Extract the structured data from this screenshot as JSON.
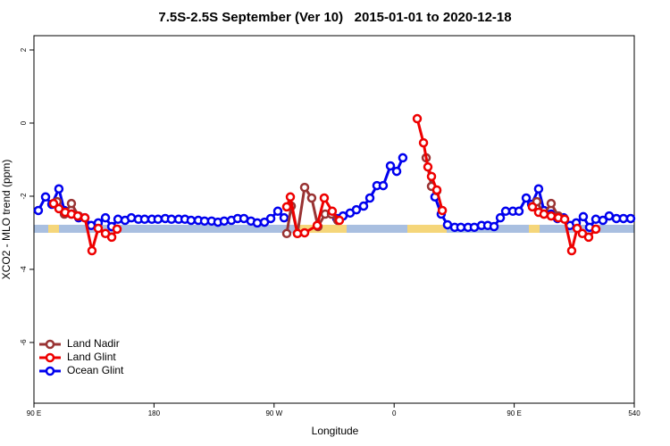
{
  "chart_data": {
    "type": "line",
    "title": "7.5S-2.5S September (Ver 10)   2015-01-01 to 2020-12-18",
    "xlabel": "Longitude",
    "ylabel": "XCO2 - MLO trend (ppm)",
    "xlim": [
      90,
      540
    ],
    "ylim": [
      -7.66,
      2.39
    ],
    "xticks": [
      {
        "value": 90,
        "label": "90 E"
      },
      180,
      {
        "value": 270,
        "label": "90 W"
      },
      {
        "value": 360,
        "label": "0"
      },
      {
        "value": 450,
        "label": "90 E"
      },
      540
    ],
    "yticks": [
      2,
      0,
      -2,
      -4,
      -6
    ],
    "legend": "bottom-left",
    "series": [
      {
        "name": "Land Nadir",
        "color": "#993333",
        "x": [
          107.4,
          112.8,
          118.1,
          123.5,
          null,
          279.5,
          282.9,
          287.5,
          292.9,
          298.2,
          302.9,
          308.3,
          313.0,
          317.7,
          null,
          384.0,
          388.0,
          392.0,
          null,
          467.0,
          472.3,
          477.7,
          483.1
        ],
        "values": [
          -2.15,
          -2.49,
          -2.2,
          -2.54,
          null,
          -3.02,
          -2.27,
          -3.02,
          -1.76,
          -2.05,
          -2.83,
          -2.49,
          -2.49,
          -2.66,
          null,
          -0.95,
          -1.73,
          -1.85,
          null,
          -2.15,
          -2.49,
          -2.2,
          -2.54
        ]
      },
      {
        "name": "Land Glint",
        "color": "#ee0000",
        "x": [
          104.7,
          108.7,
          113.4,
          118.1,
          122.8,
          128.2,
          133.5,
          138.2,
          143.6,
          148.3,
          152.3,
          null,
          279.5,
          282.2,
          287.5,
          292.9,
          302.3,
          307.6,
          313.6,
          319.0,
          null,
          377.3,
          382.0,
          385.3,
          388.0,
          392.0,
          396.1,
          null,
          463.6,
          468.3,
          472.3,
          477.7,
          483.1,
          487.8,
          493.1,
          497.2,
          501.1,
          505.8,
          511.2
        ],
        "values": [
          -2.2,
          -2.34,
          -2.44,
          -2.49,
          -2.54,
          -2.59,
          -3.49,
          -2.88,
          -3.02,
          -3.12,
          -2.9,
          null,
          -2.29,
          -2.02,
          -3.02,
          -3.0,
          -2.8,
          -2.05,
          -2.41,
          -2.66,
          null,
          0.12,
          -0.54,
          -1.2,
          -1.46,
          -1.83,
          -2.39,
          null,
          -2.29,
          -2.44,
          -2.49,
          -2.54,
          -2.59,
          -2.63,
          -3.49,
          -2.88,
          -3.02,
          -3.12,
          -2.9
        ]
      },
      {
        "name": "Ocean Glint",
        "color": "#0000ee",
        "x": [
          93.3,
          98.7,
          103.4,
          108.7,
          112.8,
          118.1,
          123.5,
          128.2,
          132.9,
          138.2,
          143.6,
          148.3,
          153.0,
          158.3,
          163.0,
          168.3,
          173.0,
          178.4,
          183.0,
          188.4,
          193.1,
          198.5,
          203.2,
          207.8,
          213.2,
          217.9,
          223.2,
          227.9,
          232.6,
          238.0,
          242.7,
          247.4,
          252.7,
          257.4,
          262.8,
          267.5,
          272.8,
          277.5,
          null,
          317.0,
          321.7,
          327.0,
          331.7,
          337.1,
          341.8,
          347.1,
          351.8,
          357.2,
          361.9,
          366.5,
          null,
          390.6,
          395.3,
          400.0,
          405.4,
          410.0,
          415.4,
          420.1,
          425.5,
          430.2,
          434.9,
          439.6,
          443.6,
          449.0,
          453.6,
          459.0,
          463.0,
          468.3,
          472.3,
          477.7,
          482.4,
          487.1,
          491.8,
          496.5,
          501.8,
          506.5,
          511.2,
          516.5,
          521.2,
          526.6,
          531.9,
          537.3
        ],
        "values": [
          -2.39,
          -2.02,
          -2.22,
          -1.8,
          -2.39,
          -2.49,
          -2.59,
          -2.59,
          -2.8,
          -2.73,
          -2.59,
          -2.83,
          -2.63,
          -2.66,
          -2.59,
          -2.63,
          -2.63,
          -2.63,
          -2.63,
          -2.61,
          -2.63,
          -2.63,
          -2.63,
          -2.66,
          -2.66,
          -2.68,
          -2.68,
          -2.71,
          -2.68,
          -2.66,
          -2.61,
          -2.61,
          -2.68,
          -2.73,
          -2.71,
          -2.61,
          -2.41,
          -2.59,
          null,
          -2.61,
          -2.54,
          -2.46,
          -2.37,
          -2.27,
          -2.05,
          -1.71,
          -1.71,
          -1.17,
          -1.32,
          -0.95,
          null,
          -2.02,
          -2.49,
          -2.78,
          -2.85,
          -2.85,
          -2.85,
          -2.85,
          -2.8,
          -2.8,
          -2.83,
          -2.59,
          -2.41,
          -2.41,
          -2.41,
          -2.05,
          -2.22,
          -1.8,
          -2.39,
          -2.49,
          -2.61,
          -2.59,
          -2.8,
          -2.73,
          -2.56,
          -2.85,
          -2.63,
          -2.66,
          -2.54,
          -2.61,
          -2.61,
          -2.61
        ]
      }
    ]
  }
}
